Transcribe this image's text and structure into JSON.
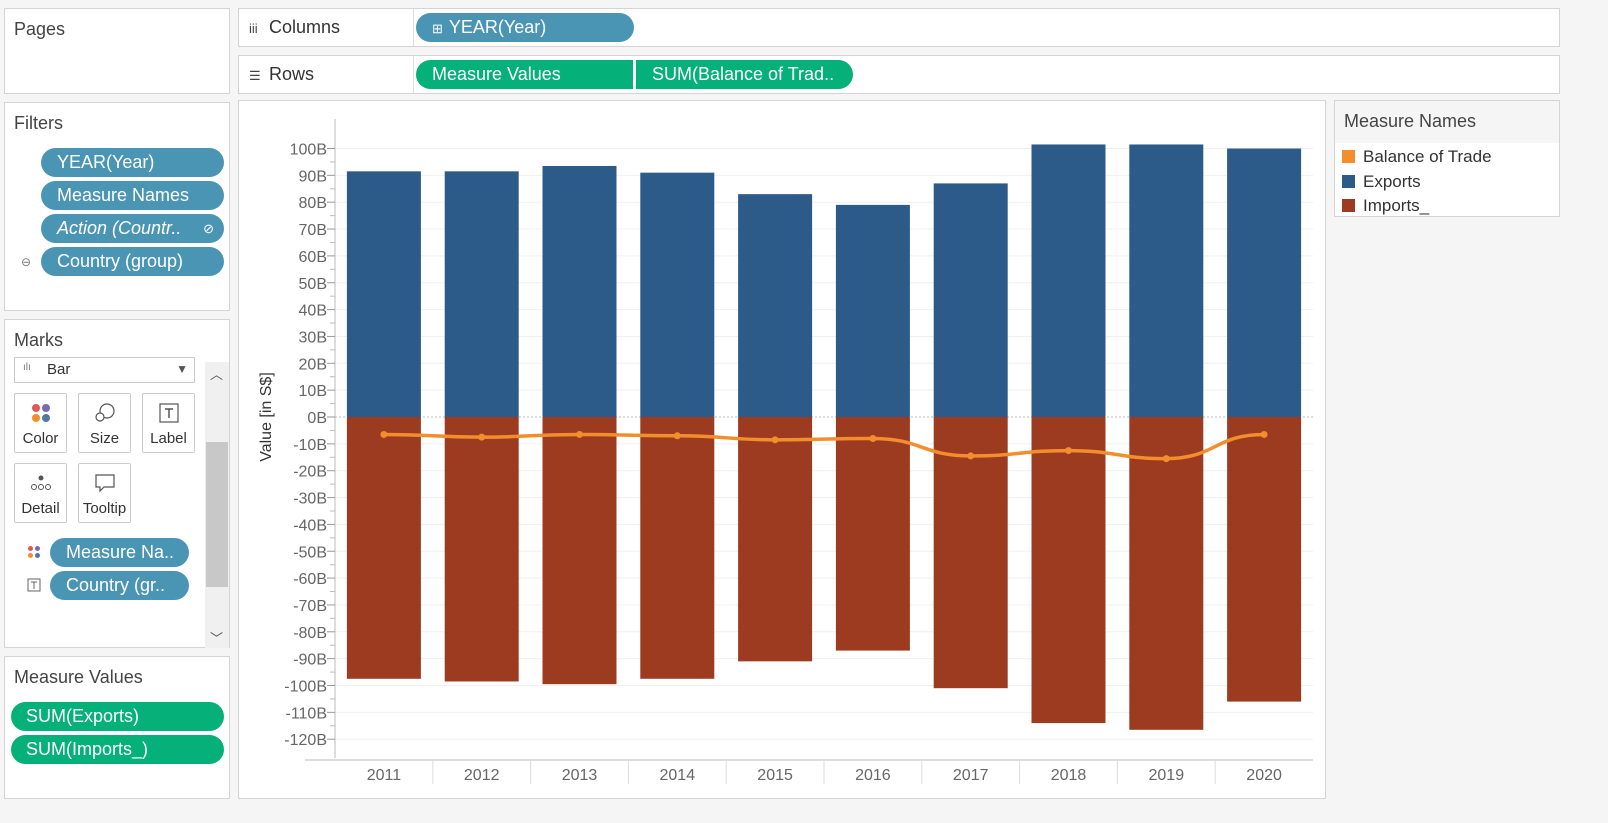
{
  "pages": {
    "title": "Pages"
  },
  "columns_shelf": {
    "label": "Columns",
    "pills": [
      "YEAR(Year)"
    ]
  },
  "rows_shelf": {
    "label": "Rows",
    "pills": [
      "Measure Values",
      "SUM(Balance of Trad.."
    ]
  },
  "filters": {
    "title": "Filters",
    "pills": [
      "YEAR(Year)",
      "Measure Names",
      "Action (Countr..",
      "Country (group)"
    ]
  },
  "marks": {
    "title": "Marks",
    "mark_type": "Bar",
    "buttons": [
      "Color",
      "Size",
      "Label",
      "Detail",
      "Tooltip"
    ],
    "pills": [
      "Measure Na..",
      "Country (gr.."
    ]
  },
  "measure_values": {
    "title": "Measure Values",
    "pills": [
      "SUM(Exports)",
      "SUM(Imports_)"
    ]
  },
  "legend": {
    "title": "Measure Names",
    "items": [
      {
        "label": "Balance of Trade",
        "color": "#f28e2b"
      },
      {
        "label": "Exports",
        "color": "#2c5b8a"
      },
      {
        "label": "Imports_",
        "color": "#9d3b21"
      }
    ]
  },
  "chart_data": {
    "type": "bar",
    "ylabel": "Value [in S$]",
    "ylim": [
      -125,
      105
    ],
    "yticks": [
      "100B",
      "90B",
      "80B",
      "70B",
      "60B",
      "50B",
      "40B",
      "30B",
      "20B",
      "10B",
      "0B",
      "-10B",
      "-20B",
      "-30B",
      "-40B",
      "-50B",
      "-60B",
      "-70B",
      "-80B",
      "-90B",
      "-100B",
      "-110B",
      "-120B"
    ],
    "ytick_values": [
      100,
      90,
      80,
      70,
      60,
      50,
      40,
      30,
      20,
      10,
      0,
      -10,
      -20,
      -30,
      -40,
      -50,
      -60,
      -70,
      -80,
      -90,
      -100,
      -110,
      -120
    ],
    "categories": [
      "2011",
      "2012",
      "2013",
      "2014",
      "2015",
      "2016",
      "2017",
      "2018",
      "2019",
      "2020"
    ],
    "series": [
      {
        "name": "Exports",
        "type": "bar",
        "color": "#2c5b8a",
        "values": [
          91.5,
          91.5,
          93.5,
          91,
          83,
          79,
          87,
          101.5,
          101.5,
          100
        ]
      },
      {
        "name": "Imports_",
        "type": "bar",
        "color": "#9d3b21",
        "values": [
          -97.5,
          -98.5,
          -99.5,
          -97.5,
          -91,
          -87,
          -101,
          -114,
          -116.5,
          -106
        ]
      },
      {
        "name": "Balance of Trade",
        "type": "line",
        "color": "#f28e2b",
        "values": [
          -6.5,
          -7.5,
          -6.5,
          -7,
          -8.5,
          -8,
          -14.5,
          -12.5,
          -15.5,
          -6.5
        ]
      }
    ],
    "grid": true,
    "legend_position": "right"
  }
}
